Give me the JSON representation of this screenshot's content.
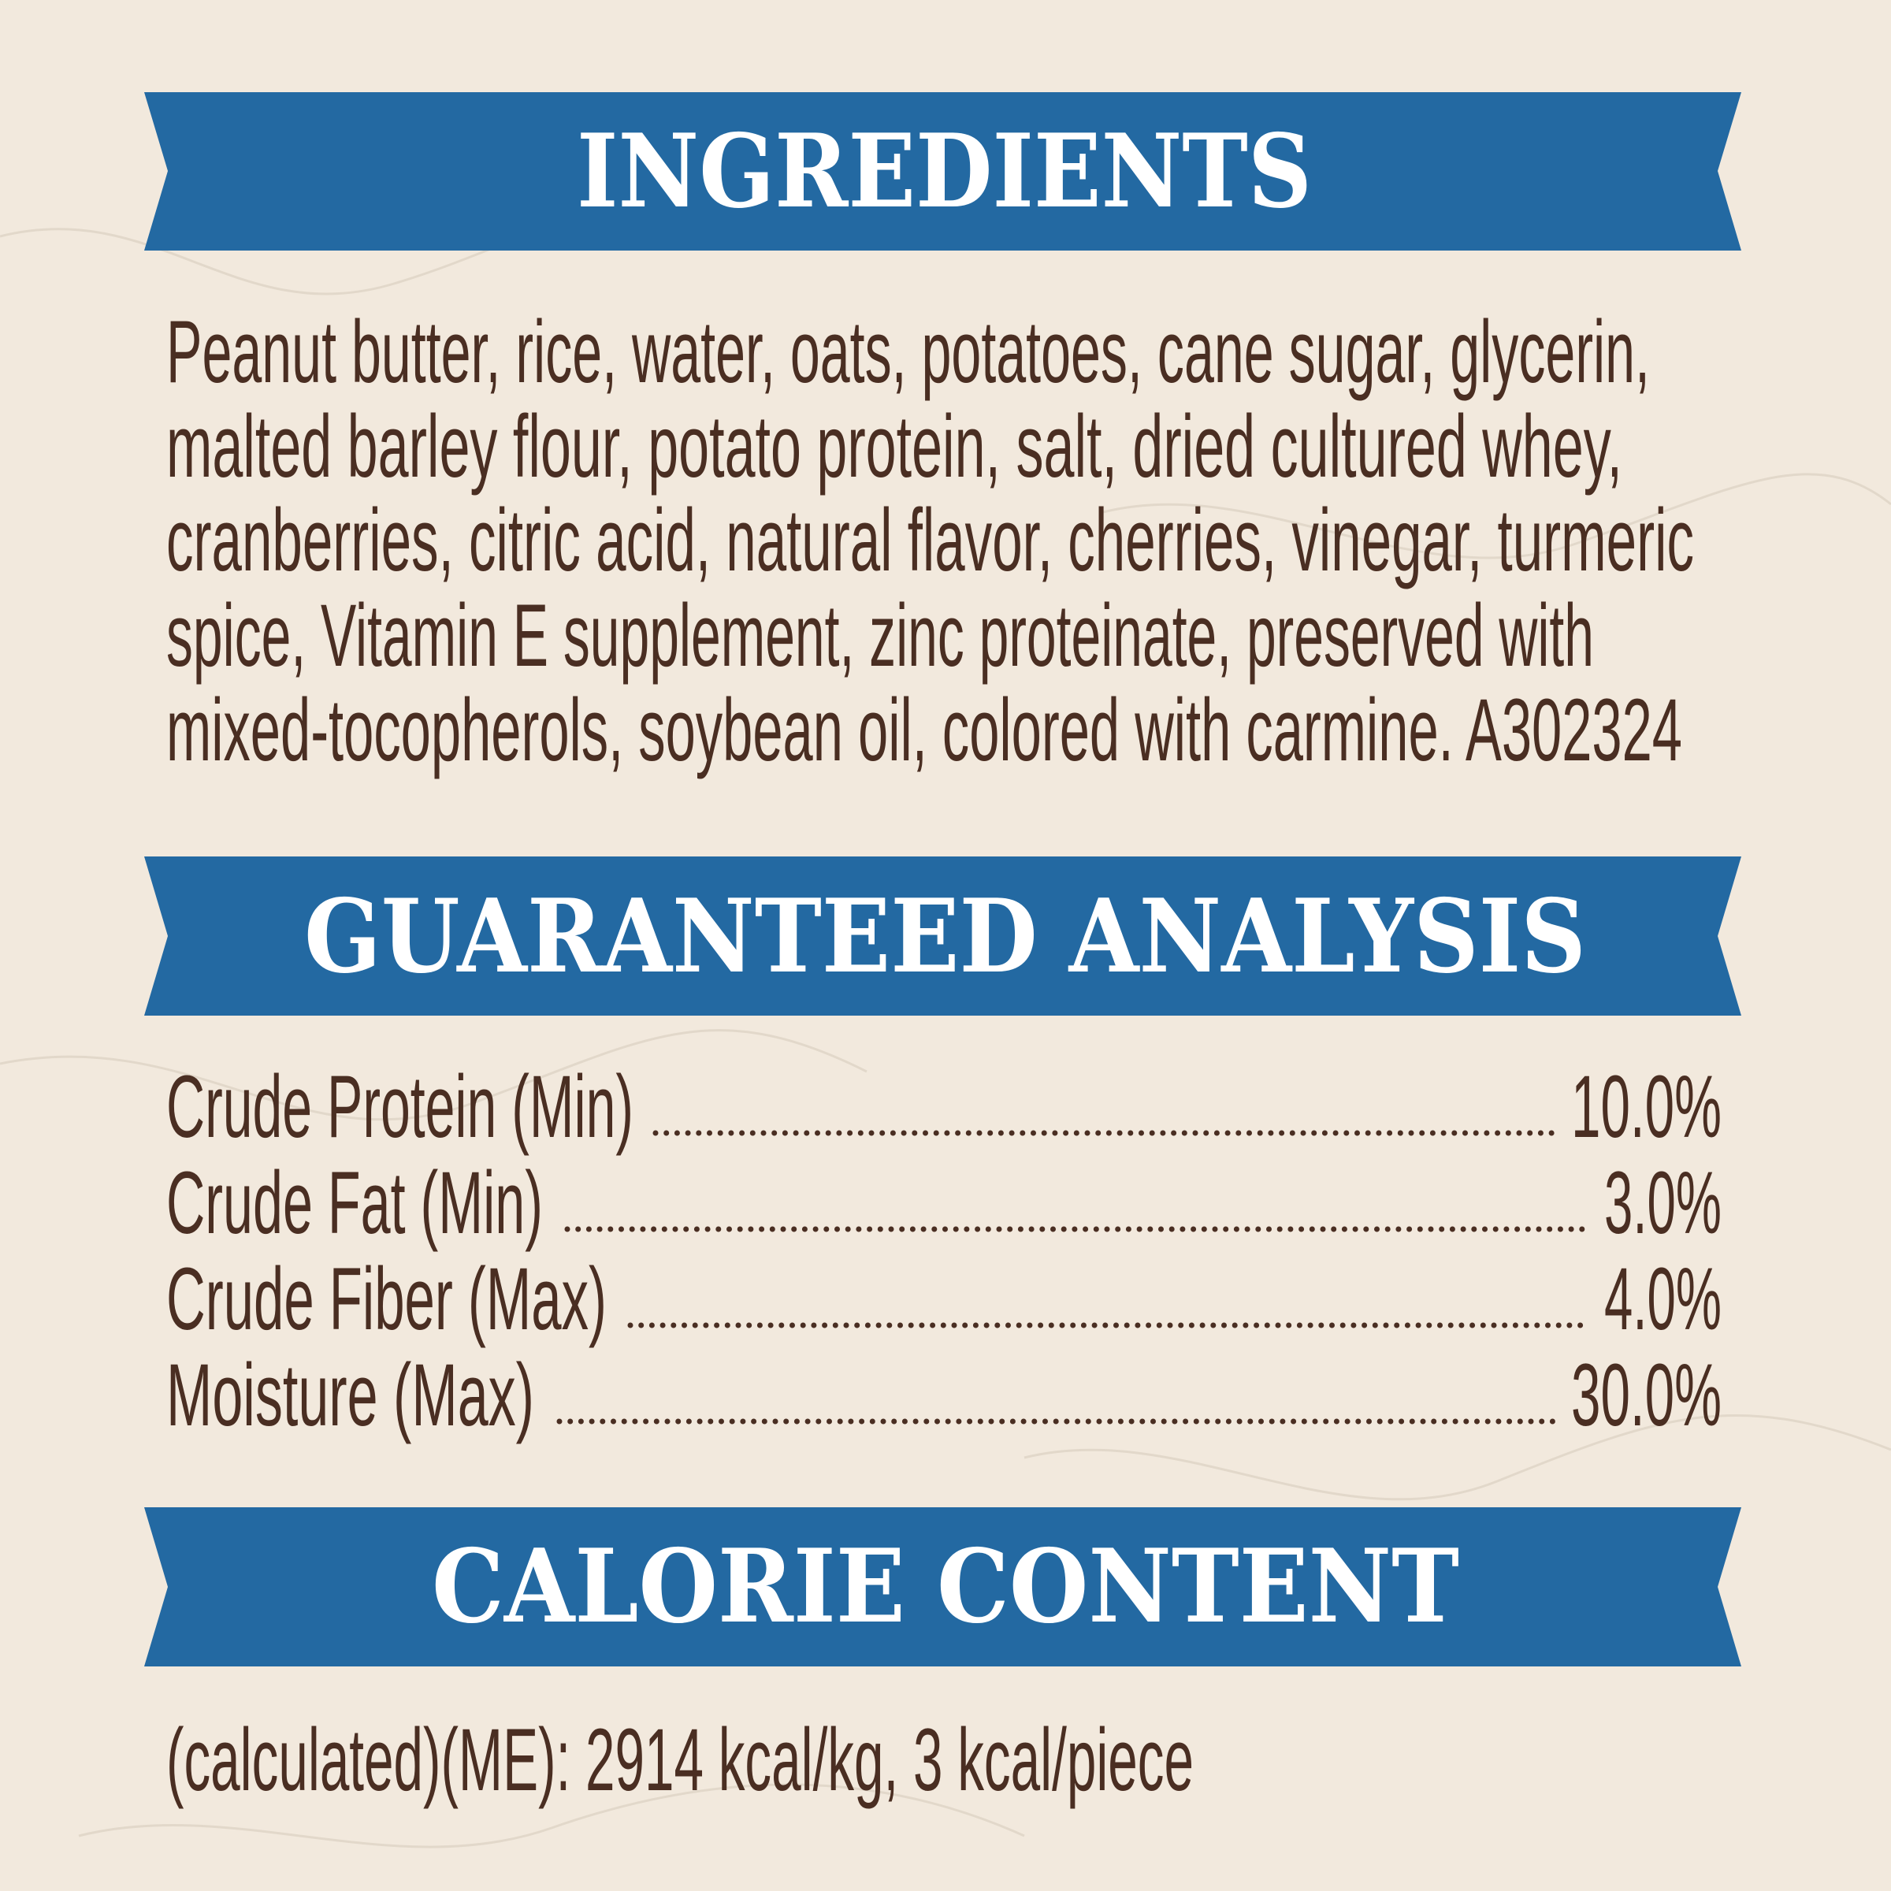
{
  "colors": {
    "background": "#F2E9DD",
    "banner": "#2369A2",
    "banner_text": "#FFFFFF",
    "body_text": "#4A2E22"
  },
  "ingredients": {
    "title": "INGREDIENTS",
    "lines": [
      "Peanut butter, rice, water, oats, potatoes, cane sugar, glycerin,",
      "malted barley flour, potato protein, salt, dried cultured whey,",
      "cranberries, citric acid, natural flavor, cherries, vinegar, turmeric",
      "spice, Vitamin E supplement, zinc proteinate, preserved with",
      "mixed-tocopherols, soybean oil, colored with carmine. A302324"
    ]
  },
  "analysis": {
    "title": "GUARANTEED ANALYSIS",
    "rows": [
      {
        "label": "Crude Protein (Min)",
        "value": "10.0%"
      },
      {
        "label": "Crude Fat (Min)",
        "value": "3.0%"
      },
      {
        "label": "Crude Fiber (Max)",
        "value": "4.0%"
      },
      {
        "label": "Moisture (Max)",
        "value": "30.0%"
      }
    ]
  },
  "calories": {
    "title": "CALORIE CONTENT",
    "text": "(calculated)(ME): 2914 kcal/kg, 3 kcal/piece"
  }
}
